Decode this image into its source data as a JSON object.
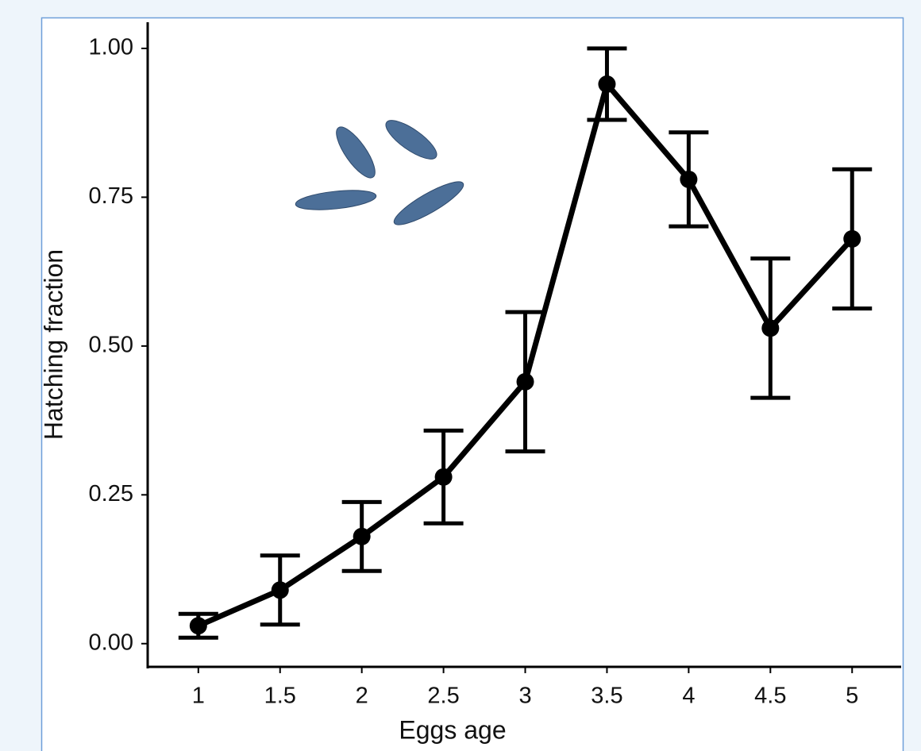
{
  "chart_data": {
    "type": "line",
    "x_label": "Eggs age",
    "y_label": "Hatching fraction",
    "x": [
      1,
      1.5,
      2,
      2.5,
      3,
      3.5,
      4,
      4.5,
      5
    ],
    "values": [
      0.03,
      0.09,
      0.18,
      0.28,
      0.44,
      0.94,
      0.78,
      0.53,
      0.68
    ],
    "errors": [
      0.02,
      0.058,
      0.058,
      0.078,
      0.117,
      0.06,
      0.079,
      0.117,
      0.117
    ],
    "color": "#000000",
    "xlim": [
      0.69,
      5.3
    ],
    "xticks": [
      1,
      1.5,
      2,
      2.5,
      3,
      3.5,
      4,
      4.5,
      5
    ],
    "ylim": [
      -0.039,
      1.044
    ],
    "yticks": [
      {
        "value": 0,
        "label": "0.00"
      },
      {
        "value": 0.25,
        "label": "0.25"
      },
      {
        "value": 0.5,
        "label": "0.50"
      },
      {
        "value": 0.75,
        "label": "0.75"
      },
      {
        "value": 1,
        "label": "1.00"
      }
    ],
    "grid": false
  }
}
